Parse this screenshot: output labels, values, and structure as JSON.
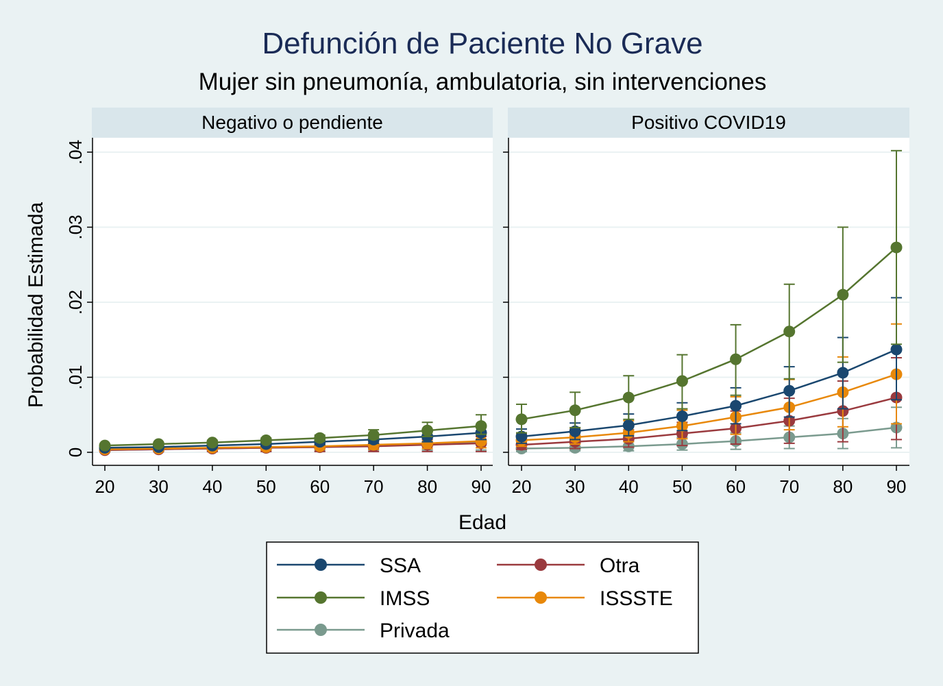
{
  "chart_data": {
    "type": "line",
    "title": "Defunción de Paciente No Grave",
    "subtitle": "Mujer sin pneumonía, ambulatoria, sin intervenciones",
    "xlabel": "Edad",
    "ylabel": "Probabilidad Estimada",
    "x": [
      20,
      30,
      40,
      50,
      60,
      70,
      80,
      90
    ],
    "x_ticks": [
      "20",
      "30",
      "40",
      "50",
      "60",
      "70",
      "80",
      "90"
    ],
    "ylim": [
      0,
      0.04
    ],
    "y_ticks": [
      {
        "value": 0,
        "label": "0"
      },
      {
        "value": 0.01,
        "label": ".01"
      },
      {
        "value": 0.02,
        "label": ".02"
      },
      {
        "value": 0.03,
        "label": ".03"
      },
      {
        "value": 0.04,
        "label": ".04"
      }
    ],
    "grid": true,
    "legend_position": "bottom",
    "panels": [
      {
        "title": "Negativo o pendiente",
        "series": [
          {
            "name": "Privada",
            "color": "#7a9a8e",
            "values": [
              0.0003,
              0.0004,
              0.0005,
              0.0006,
              0.0007,
              0.0009,
              0.0011,
              0.0013
            ],
            "lower": [
              0.0001,
              0.0001,
              0.0002,
              0.0002,
              0.0002,
              0.0003,
              0.0003,
              0.0003
            ],
            "upper": [
              0.0006,
              0.0007,
              0.0008,
              0.001,
              0.0012,
              0.0015,
              0.0018,
              0.0022
            ]
          },
          {
            "name": "Otra",
            "color": "#9a3a3e",
            "values": [
              0.0003,
              0.0004,
              0.0005,
              0.0006,
              0.0007,
              0.0008,
              0.001,
              0.0012
            ],
            "lower": [
              0.0001,
              0.0001,
              0.0001,
              0.0001,
              0.0001,
              0.0001,
              0.0001,
              0.0001
            ],
            "upper": [
              0.0006,
              0.0007,
              0.0008,
              0.001,
              0.0012,
              0.0014,
              0.0017,
              0.0021
            ]
          },
          {
            "name": "ISSSTE",
            "color": "#e8880a",
            "values": [
              0.0004,
              0.0005,
              0.0006,
              0.0007,
              0.0008,
              0.001,
              0.0012,
              0.0015
            ],
            "lower": [
              0.0002,
              0.0002,
              0.0003,
              0.0003,
              0.0004,
              0.0004,
              0.0005,
              0.0006
            ],
            "upper": [
              0.0006,
              0.0007,
              0.0009,
              0.0011,
              0.0013,
              0.0016,
              0.002,
              0.0024
            ]
          },
          {
            "name": "SSA",
            "color": "#1a476f",
            "values": [
              0.0006,
              0.0007,
              0.0009,
              0.0011,
              0.0014,
              0.0017,
              0.0021,
              0.0026
            ],
            "lower": [
              0.0004,
              0.0005,
              0.0006,
              0.0008,
              0.001,
              0.0012,
              0.0014,
              0.0017
            ],
            "upper": [
              0.0008,
              0.001,
              0.0012,
              0.0014,
              0.0018,
              0.0022,
              0.0028,
              0.0035
            ]
          },
          {
            "name": "IMSS",
            "color": "#55752f",
            "values": [
              0.0009,
              0.0011,
              0.0013,
              0.0016,
              0.0019,
              0.0023,
              0.0029,
              0.0035
            ],
            "lower": [
              0.0007,
              0.0009,
              0.0011,
              0.0013,
              0.0015,
              0.0018,
              0.0021,
              0.0024
            ],
            "upper": [
              0.0011,
              0.0013,
              0.0016,
              0.0019,
              0.0023,
              0.003,
              0.004,
              0.005
            ]
          }
        ]
      },
      {
        "title": "Positivo COVID19",
        "series": [
          {
            "name": "Privada",
            "color": "#7a9a8e",
            "values": [
              0.0005,
              0.0006,
              0.0008,
              0.0011,
              0.0015,
              0.002,
              0.0025,
              0.0033
            ],
            "lower": [
              0.0001,
              0.0002,
              0.0002,
              0.0003,
              0.0004,
              0.0005,
              0.0005,
              0.0006
            ],
            "upper": [
              0.001,
              0.0012,
              0.0015,
              0.002,
              0.0026,
              0.0035,
              0.0045,
              0.006
            ]
          },
          {
            "name": "Otra",
            "color": "#9a3a3e",
            "values": [
              0.001,
              0.0014,
              0.0018,
              0.0025,
              0.0032,
              0.0042,
              0.0055,
              0.0073
            ],
            "lower": [
              0.0004,
              0.0005,
              0.0007,
              0.0009,
              0.0011,
              0.0012,
              0.0014,
              0.0017
            ],
            "upper": [
              0.0017,
              0.0023,
              0.003,
              0.004,
              0.0055,
              0.0072,
              0.0095,
              0.0126
            ]
          },
          {
            "name": "ISSSTE",
            "color": "#e8880a",
            "values": [
              0.0016,
              0.002,
              0.0026,
              0.0035,
              0.0047,
              0.006,
              0.008,
              0.0104
            ],
            "lower": [
              0.0008,
              0.0011,
              0.0014,
              0.0018,
              0.0024,
              0.003,
              0.0034,
              0.0038
            ],
            "upper": [
              0.0025,
              0.0032,
              0.0042,
              0.0056,
              0.0074,
              0.0097,
              0.0127,
              0.0171
            ]
          },
          {
            "name": "SSA",
            "color": "#1a476f",
            "values": [
              0.0021,
              0.0028,
              0.0036,
              0.0048,
              0.0062,
              0.0082,
              0.0106,
              0.0137
            ],
            "lower": [
              0.0012,
              0.0017,
              0.0022,
              0.0029,
              0.0038,
              0.0047,
              0.0058,
              0.007
            ],
            "upper": [
              0.0031,
              0.0039,
              0.0051,
              0.0066,
              0.0086,
              0.0114,
              0.0153,
              0.0206
            ]
          },
          {
            "name": "IMSS",
            "color": "#55752f",
            "values": [
              0.0044,
              0.0056,
              0.0073,
              0.0095,
              0.0124,
              0.0161,
              0.021,
              0.0273
            ],
            "lower": [
              0.0026,
              0.0033,
              0.0044,
              0.0058,
              0.0076,
              0.0098,
              0.012,
              0.0144
            ],
            "upper": [
              0.0064,
              0.008,
              0.0102,
              0.013,
              0.017,
              0.0224,
              0.03,
              0.0402
            ]
          }
        ]
      }
    ],
    "legend": [
      {
        "name": "SSA",
        "color": "#1a476f"
      },
      {
        "name": "Otra",
        "color": "#9a3a3e"
      },
      {
        "name": "IMSS",
        "color": "#55752f"
      },
      {
        "name": "ISSSTE",
        "color": "#e8880a"
      },
      {
        "name": "Privada",
        "color": "#7a9a8e"
      }
    ]
  }
}
